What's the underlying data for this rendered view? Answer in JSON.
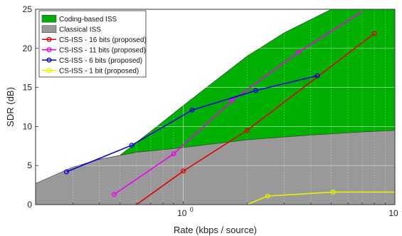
{
  "chart_data": {
    "type": "line",
    "xlabel": "Rate (kbps / source)",
    "ylabel": "SDR (dB)",
    "xscale": "log",
    "xlim": [
      0.2,
      10
    ],
    "ylim": [
      0,
      25
    ],
    "grid": true,
    "legend_position": "top-left",
    "x_ticks": [
      {
        "value": 1,
        "label": "10",
        "exp": "0"
      },
      {
        "value": 10,
        "label": "10",
        "exp": "1"
      }
    ],
    "y_ticks": [
      0,
      5,
      10,
      15,
      20,
      25
    ],
    "areas": [
      {
        "name": "Coding-based ISS",
        "color": "#00b000",
        "x": [
          0.2,
          0.38,
          0.5,
          0.75,
          1.0,
          2.0,
          3.0,
          5.0,
          10.0
        ],
        "y": [
          2.7,
          5.6,
          6.3,
          10.0,
          12.7,
          19.0,
          22.0,
          25.0,
          25.0
        ]
      },
      {
        "name": "Classical ISS",
        "color": "#999999",
        "x": [
          0.2,
          0.3,
          0.4,
          0.6,
          1.0,
          2.0,
          4.0,
          7.0,
          10.0
        ],
        "y": [
          2.7,
          4.8,
          5.8,
          6.7,
          7.3,
          8.3,
          8.9,
          9.3,
          9.5
        ]
      }
    ],
    "series": [
      {
        "name": "CS-ISS - 16 bits (proposed)",
        "color": "#e00000",
        "x": [
          0.6,
          1.0,
          2.0,
          8.0
        ],
        "y": [
          0.0,
          4.3,
          9.5,
          21.9
        ],
        "markers": [
          false,
          true,
          true,
          true
        ]
      },
      {
        "name": "CS-ISS - 11 bits (proposed)",
        "color": "#ee00ee",
        "x": [
          0.47,
          0.9,
          1.7,
          3.5,
          7.0
        ],
        "y": [
          1.3,
          6.5,
          13.3,
          19.5,
          24.7
        ],
        "markers": [
          true,
          true,
          true,
          true,
          false
        ]
      },
      {
        "name": "CS-ISS - 6 bits (proposed)",
        "color": "#0000dd",
        "x": [
          0.28,
          0.57,
          1.1,
          2.2,
          4.3
        ],
        "y": [
          4.2,
          7.6,
          12.1,
          14.6,
          16.5
        ],
        "markers": [
          true,
          true,
          true,
          true,
          true
        ]
      },
      {
        "name": "CS-ISS - 1 bit (proposed)",
        "color": "#eeee00",
        "x": [
          2.0,
          2.5,
          5.1,
          10.0
        ],
        "y": [
          0.0,
          1.1,
          1.6,
          1.6
        ],
        "markers": [
          false,
          true,
          true,
          false
        ]
      }
    ]
  }
}
